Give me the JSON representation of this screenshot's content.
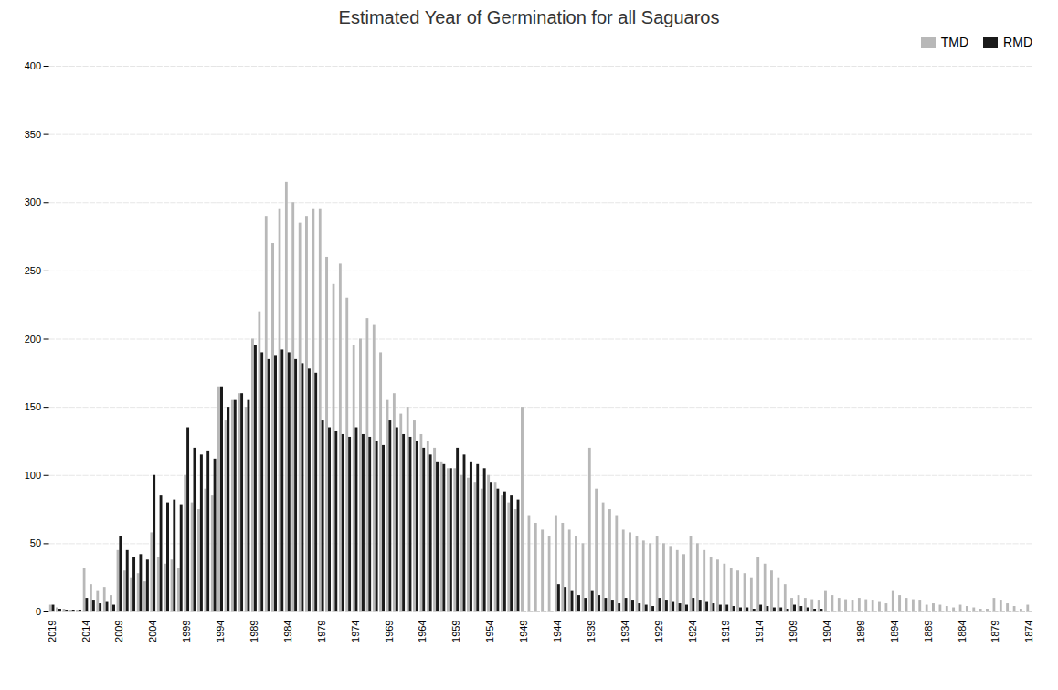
{
  "chart_data": {
    "type": "bar",
    "title": "Estimated Year of Germination for all Saguaros",
    "categories": [
      "2019",
      null,
      null,
      null,
      null,
      "2014",
      null,
      null,
      null,
      null,
      "2009",
      null,
      null,
      null,
      null,
      "2004",
      null,
      null,
      null,
      null,
      "1999",
      null,
      null,
      null,
      null,
      "1994",
      null,
      null,
      null,
      null,
      "1989",
      null,
      null,
      null,
      null,
      "1984",
      null,
      null,
      null,
      null,
      "1979",
      null,
      null,
      null,
      null,
      "1974",
      null,
      null,
      null,
      null,
      "1969",
      null,
      null,
      null,
      null,
      "1964",
      null,
      null,
      null,
      null,
      "1959",
      null,
      null,
      null,
      null,
      "1954",
      null,
      null,
      null,
      null,
      "1949",
      null,
      null,
      null,
      null,
      "1944",
      null,
      null,
      null,
      null,
      "1939",
      null,
      null,
      null,
      null,
      "1934",
      null,
      null,
      null,
      null,
      "1929",
      null,
      null,
      null,
      null,
      "1924",
      null,
      null,
      null,
      null,
      "1919",
      null,
      null,
      null,
      null,
      "1914",
      null,
      null,
      null,
      null,
      "1909",
      null,
      null,
      null,
      null,
      "1904",
      null,
      null,
      null,
      null,
      "1899",
      null,
      null,
      null,
      null,
      "1894",
      null,
      null,
      null,
      null,
      "1889",
      null,
      null,
      null,
      null,
      "1884",
      null,
      null,
      null,
      null,
      "1879",
      null,
      null,
      null,
      null,
      "1874"
    ],
    "series": [
      {
        "name": "TMD",
        "color": "#b8b8b8",
        "values": [
          5,
          3,
          2,
          1,
          1,
          32,
          20,
          15,
          18,
          12,
          45,
          30,
          25,
          28,
          22,
          58,
          40,
          35,
          38,
          32,
          100,
          80,
          75,
          90,
          85,
          165,
          140,
          155,
          160,
          150,
          200,
          220,
          290,
          270,
          295,
          315,
          300,
          285,
          290,
          295,
          295,
          260,
          240,
          255,
          230,
          195,
          200,
          215,
          210,
          190,
          155,
          160,
          145,
          150,
          140,
          130,
          125,
          120,
          110,
          105,
          105,
          100,
          98,
          95,
          90,
          100,
          95,
          85,
          80,
          75,
          150,
          70,
          65,
          60,
          55,
          70,
          65,
          60,
          55,
          50,
          120,
          90,
          80,
          75,
          70,
          60,
          58,
          55,
          52,
          50,
          55,
          50,
          48,
          45,
          42,
          55,
          50,
          45,
          40,
          38,
          35,
          32,
          30,
          28,
          25,
          40,
          35,
          30,
          25,
          20,
          10,
          12,
          10,
          9,
          8,
          15,
          12,
          10,
          9,
          8,
          10,
          9,
          8,
          7,
          6,
          15,
          12,
          10,
          9,
          8,
          5,
          6,
          5,
          4,
          3,
          5,
          4,
          3,
          2,
          2,
          10,
          8,
          6,
          4,
          2,
          5
        ]
      },
      {
        "name": "RMD",
        "color": "#1a1a1a",
        "values": [
          5,
          2,
          1,
          1,
          1,
          10,
          8,
          6,
          7,
          5,
          55,
          45,
          40,
          42,
          38,
          100,
          85,
          80,
          82,
          78,
          135,
          120,
          115,
          118,
          112,
          165,
          150,
          155,
          160,
          155,
          195,
          190,
          185,
          188,
          192,
          190,
          185,
          182,
          178,
          175,
          140,
          135,
          132,
          130,
          128,
          135,
          130,
          128,
          125,
          122,
          140,
          135,
          130,
          128,
          125,
          120,
          115,
          110,
          108,
          105,
          120,
          115,
          110,
          108,
          105,
          95,
          90,
          88,
          85,
          82,
          0,
          0,
          0,
          0,
          0,
          20,
          18,
          15,
          12,
          10,
          15,
          12,
          10,
          8,
          6,
          10,
          8,
          6,
          5,
          4,
          10,
          8,
          7,
          6,
          5,
          10,
          8,
          7,
          6,
          5,
          5,
          4,
          3,
          3,
          2,
          5,
          4,
          3,
          3,
          2,
          5,
          4,
          3,
          2,
          2,
          0,
          0,
          0,
          0,
          0,
          0,
          0,
          0,
          0,
          0,
          0,
          0,
          0,
          0,
          0,
          0,
          0,
          0,
          0,
          0,
          0,
          0,
          0,
          0,
          0,
          0,
          0,
          0,
          0,
          0,
          0
        ]
      }
    ],
    "ylim": [
      0,
      400
    ],
    "yticks": [
      0,
      50,
      100,
      150,
      200,
      250,
      300,
      350,
      400
    ],
    "grid": true,
    "legend": "upper right"
  }
}
